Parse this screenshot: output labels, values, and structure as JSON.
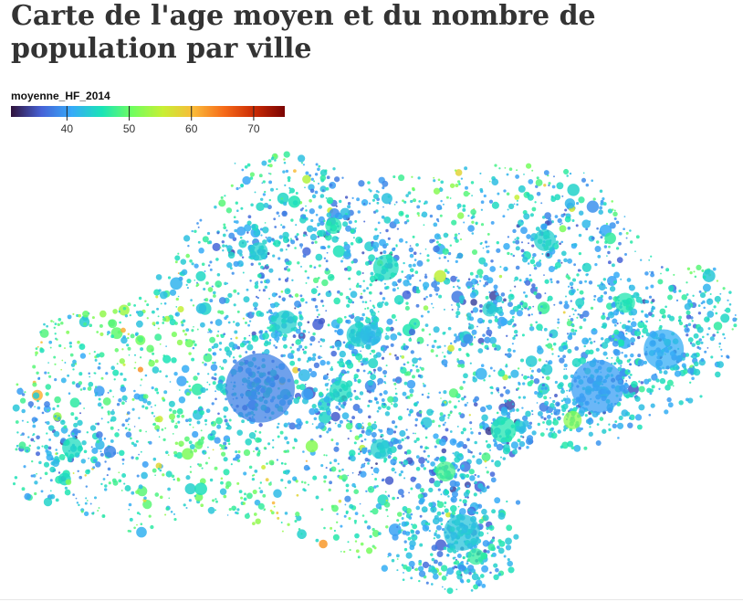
{
  "page": {
    "title": "Carte de l'age moyen et du nombre de population par ville"
  },
  "chart_data": {
    "type": "scatter",
    "legend": {
      "title": "moyenne_HF_2014",
      "domain": [
        31,
        75
      ],
      "ticks": [
        40,
        50,
        60,
        70
      ],
      "colormap": "turbo"
    },
    "colors": {
      "background": "#ffffff",
      "turbo_stops": [
        "#30123b",
        "#4662d7",
        "#36aaf9",
        "#1ae4b6",
        "#72fe5e",
        "#c8ef34",
        "#faba39",
        "#f66b19",
        "#ca2a04",
        "#7a0403"
      ]
    },
    "major_cities": [
      {
        "age": 38,
        "size": 38,
        "lon_lat": [
          1.44,
          43.6
        ]
      },
      {
        "age": 40,
        "size": 29,
        "lon_lat": [
          3.88,
          43.61
        ]
      },
      {
        "age": 41,
        "size": 22,
        "lon_lat": [
          4.36,
          43.84
        ]
      },
      {
        "age": 43,
        "size": 20,
        "lon_lat": [
          2.9,
          42.7
        ]
      },
      {
        "age": 45,
        "size": 14,
        "lon_lat": [
          2.35,
          44.35
        ]
      },
      {
        "age": 46,
        "size": 14,
        "lon_lat": [
          3.2,
          43.34
        ]
      },
      {
        "age": 44,
        "size": 13,
        "lon_lat": [
          1.62,
          44.01
        ]
      },
      {
        "age": 44,
        "size": 13,
        "lon_lat": [
          2.15,
          43.93
        ]
      },
      {
        "age": 45,
        "size": 12,
        "lon_lat": [
          2.02,
          43.58
        ]
      },
      {
        "age": 44,
        "size": 12,
        "lon_lat": [
          3.5,
          44.52
        ]
      },
      {
        "age": 42,
        "size": 12,
        "lon_lat": [
          2.24,
          43.93
        ]
      },
      {
        "age": 48,
        "size": 11,
        "lon_lat": [
          2.78,
          43.08
        ]
      },
      {
        "age": 46,
        "size": 11,
        "lon_lat": [
          4.08,
          44.13
        ]
      },
      {
        "age": 44,
        "size": 11,
        "lon_lat": [
          2.31,
          43.22
        ]
      },
      {
        "age": 45,
        "size": 11,
        "lon_lat": [
          0.08,
          43.23
        ]
      },
      {
        "age": 44,
        "size": 10,
        "lon_lat": [
          1.43,
          44.45
        ]
      },
      {
        "age": 52,
        "size": 10,
        "lon_lat": [
          3.7,
          43.4
        ]
      },
      {
        "age": 46,
        "size": 9,
        "lon_lat": [
          1.97,
          44.61
        ]
      },
      {
        "age": 47,
        "size": 9,
        "lon_lat": [
          3.0,
          42.55
        ]
      },
      {
        "age": 44,
        "size": 8,
        "lon_lat": [
          3.1,
          44.09
        ]
      }
    ]
  }
}
